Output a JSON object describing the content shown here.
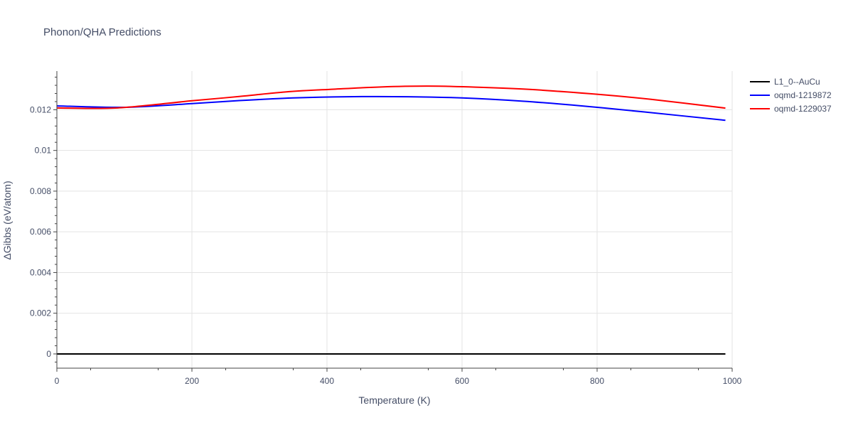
{
  "chart_data": {
    "type": "line",
    "title": "Phonon/QHA Predictions",
    "xlabel": "Temperature (K)",
    "ylabel": "ΔGibbs (eV/atom)",
    "xlim": [
      0,
      1000
    ],
    "ylim": [
      -0.0007,
      0.0139
    ],
    "xticks": [
      0,
      200,
      400,
      600,
      800,
      1000
    ],
    "xtick_labels": [
      "0",
      "200",
      "400",
      "600",
      "800",
      "1000"
    ],
    "yticks": [
      0,
      0.002,
      0.004,
      0.006,
      0.008,
      0.01,
      0.012
    ],
    "ytick_labels": [
      "0",
      "0.002",
      "0.004",
      "0.006",
      "0.008",
      "0.01",
      "0.012"
    ],
    "grid": true,
    "legend_position": "top-right",
    "series": [
      {
        "name": "L1_0--AuCu",
        "color": "#000000",
        "x": [
          0,
          990
        ],
        "y": [
          0,
          0
        ]
      },
      {
        "name": "oqmd-1219872",
        "color": "#0000ff",
        "x": [
          0,
          100,
          200,
          270,
          350,
          430,
          520,
          600,
          690,
          780,
          870,
          990
        ],
        "y": [
          0.01219,
          0.01212,
          0.0123,
          0.01245,
          0.01258,
          0.01264,
          0.01264,
          0.01258,
          0.01242,
          0.01218,
          0.01189,
          0.01148
        ]
      },
      {
        "name": "oqmd-1229037",
        "color": "#ff0000",
        "x": [
          0,
          90,
          200,
          270,
          340,
          410,
          480,
          550,
          620,
          700,
          800,
          880,
          990
        ],
        "y": [
          0.01209,
          0.01209,
          0.01244,
          0.01265,
          0.01288,
          0.01301,
          0.01312,
          0.01316,
          0.01311,
          0.013,
          0.01276,
          0.01251,
          0.01208
        ]
      }
    ]
  }
}
